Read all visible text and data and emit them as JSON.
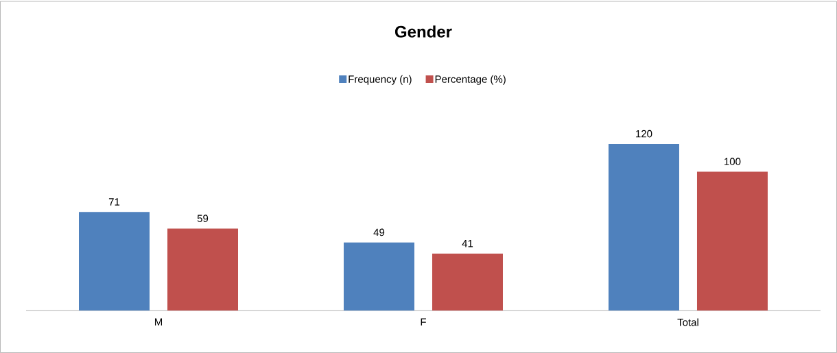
{
  "chart_data": {
    "type": "bar",
    "title": "Gender",
    "categories": [
      "M",
      "F",
      "Total"
    ],
    "series": [
      {
        "name": "Frequency (n)",
        "color": "#4f81bd",
        "values": [
          71,
          49,
          120
        ]
      },
      {
        "name": "Percentage (%)",
        "color": "#c0504d",
        "values": [
          59,
          41,
          100
        ]
      }
    ],
    "data_labels": true,
    "legend": "top"
  }
}
